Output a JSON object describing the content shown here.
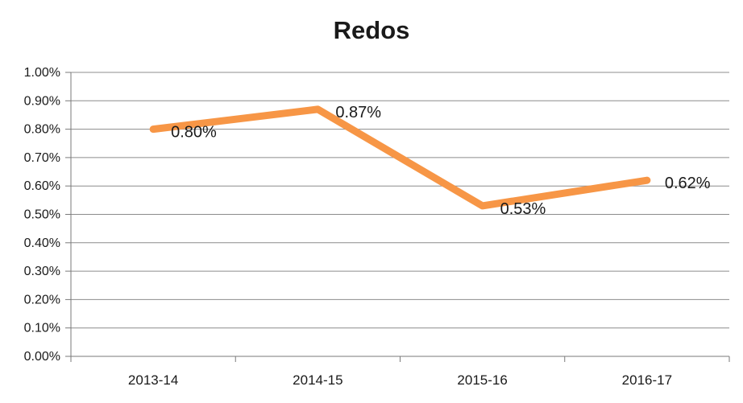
{
  "chart_data": {
    "type": "line",
    "title": "Redos",
    "categories": [
      "2013-14",
      "2014-15",
      "2015-16",
      "2016-17"
    ],
    "series": [
      {
        "name": "Redos",
        "values": [
          0.8,
          0.87,
          0.53,
          0.62
        ],
        "color": "#F79646"
      }
    ],
    "data_labels": [
      "0.80%",
      "0.87%",
      "0.53%",
      "0.62%"
    ],
    "y_tick_labels": [
      "0.00%",
      "0.10%",
      "0.20%",
      "0.30%",
      "0.40%",
      "0.50%",
      "0.60%",
      "0.70%",
      "0.80%",
      "0.90%",
      "1.00%"
    ],
    "ylim": [
      0,
      1.0
    ],
    "y_step": 0.1,
    "xlabel": "",
    "ylabel": "",
    "grid": true,
    "legend_position": "none",
    "colors": {
      "line": "#F79646",
      "gridline": "#8C8C8C",
      "axis": "#7A7A7A",
      "text": "#1A1A1A"
    }
  }
}
